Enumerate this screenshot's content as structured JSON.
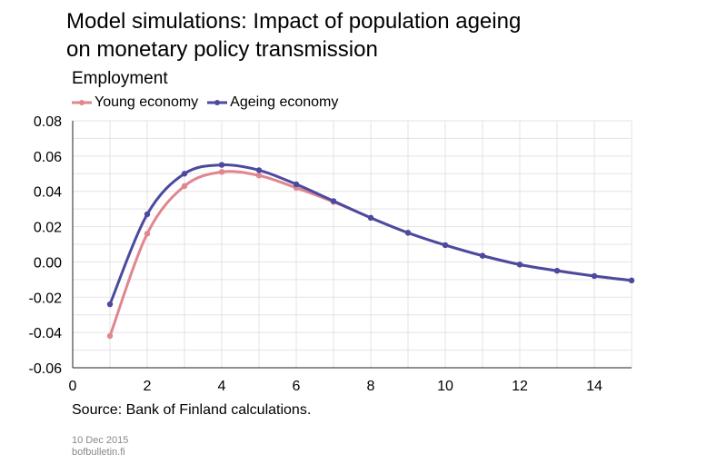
{
  "title_line1": "Model simulations: Impact of population ageing",
  "title_line2": "on monetary policy transmission",
  "footer_date": "10 Dec 2015",
  "footer_site": "bofbulletin.fi",
  "chart_data": {
    "type": "line",
    "title": "Employment",
    "source": "Source: Bank of Finland calculations.",
    "xlim": [
      0,
      15
    ],
    "ylim": [
      -0.06,
      0.08
    ],
    "x_ticks": [
      0,
      2,
      4,
      6,
      8,
      10,
      12,
      14
    ],
    "x_tick_labels": [
      "0",
      "2",
      "4",
      "6",
      "8",
      "10",
      "12",
      "14"
    ],
    "y_ticks": [
      -0.06,
      -0.04,
      -0.02,
      0.0,
      0.02,
      0.04,
      0.06,
      0.08
    ],
    "y_tick_labels": [
      "-0.06",
      "-0.04",
      "-0.02",
      "0.00",
      "0.02",
      "0.04",
      "0.06",
      "0.08"
    ],
    "grid": true,
    "legend_position": "top-left",
    "x": [
      1,
      2,
      3,
      4,
      5,
      6,
      7,
      8,
      9,
      10,
      11,
      12,
      13,
      14,
      15
    ],
    "series": [
      {
        "name": "Young economy",
        "color": "#e0868f",
        "values": [
          -0.042,
          0.016,
          0.043,
          0.051,
          0.049,
          0.042,
          0.034,
          0.025,
          0.0165,
          0.0095,
          0.0035,
          -0.0015,
          -0.005,
          -0.008,
          -0.0105
        ]
      },
      {
        "name": "Ageing economy",
        "color": "#4b4aa0",
        "values": [
          -0.024,
          0.027,
          0.05,
          0.055,
          0.052,
          0.044,
          0.0345,
          0.025,
          0.0165,
          0.0095,
          0.0035,
          -0.0015,
          -0.005,
          -0.008,
          -0.0105
        ]
      }
    ]
  }
}
